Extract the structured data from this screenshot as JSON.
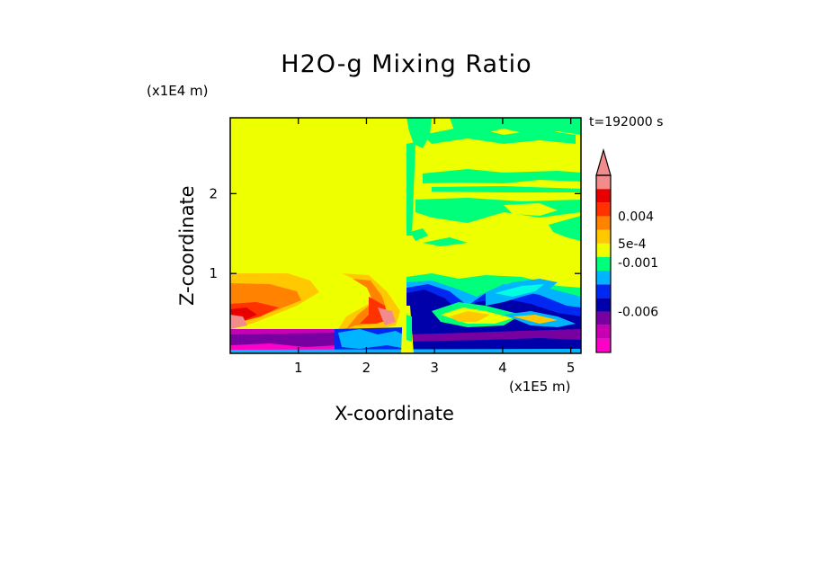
{
  "figure": {
    "title": "H2O-g Mixing Ratio",
    "time_label": "t=192000 s"
  },
  "chart_data": {
    "type": "heatmap",
    "title": "H2O-g Mixing Ratio",
    "xlabel": "X-coordinate",
    "ylabel": "Z-coordinate",
    "x_unit": "(x1E5 m)",
    "y_unit": "(x1E4 m)",
    "xlim": [
      0,
      5.15
    ],
    "ylim": [
      0,
      2.95
    ],
    "x_ticks": [
      1,
      2,
      3,
      4,
      5
    ],
    "y_ticks": [
      1,
      2
    ],
    "annotation": "t=192000 s",
    "colorbar": {
      "levels": [
        {
          "color": "#ff00c8"
        },
        {
          "color": "#c800b4"
        },
        {
          "color": "#7800a0"
        },
        {
          "color": "#0000aa"
        },
        {
          "color": "#0028f0"
        },
        {
          "color": "#00b4ff"
        },
        {
          "color": "#00ff7a"
        },
        {
          "color": "#eeff00"
        },
        {
          "color": "#ffc800"
        },
        {
          "color": "#ff8200"
        },
        {
          "color": "#ff3200"
        },
        {
          "color": "#e80000"
        },
        {
          "color": "#f28c8c"
        }
      ],
      "tick_labels": [
        "0.004",
        "5e-4",
        "-0.001",
        "-0.006"
      ],
      "extend": "max"
    },
    "regions": [
      {
        "name": "upper left background",
        "value_level": "yellow"
      },
      {
        "name": "lower left positive plume",
        "value_level": "red/orange"
      },
      {
        "name": "surface layer",
        "value_level": "magenta/purple"
      },
      {
        "name": "upper right streaks",
        "value_level": "green"
      },
      {
        "name": "lower right negative zone",
        "value_level": "blue"
      }
    ]
  }
}
